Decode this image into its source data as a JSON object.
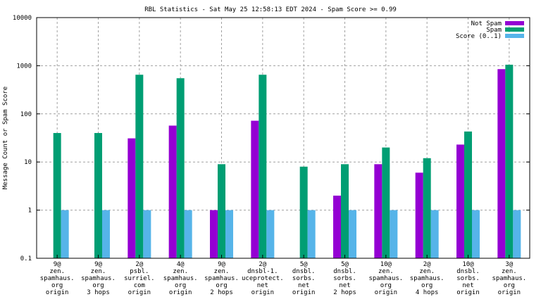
{
  "chart_data": {
    "type": "bar",
    "title": "RBL Statistics - Sat May 25 12:58:13 EDT 2024 - Spam Score >= 0.99",
    "xlabel": "",
    "ylabel": "Message Count or Spam Score",
    "yscale": "log",
    "ylim": [
      0.1,
      10000
    ],
    "yticks": [
      "0.1",
      "1",
      "10",
      "100",
      "1000",
      "10000"
    ],
    "grid": true,
    "legend_position": "top-right",
    "categories": [
      [
        "9@",
        "zen.",
        "spamhaus.",
        "org",
        "origin"
      ],
      [
        "9@",
        "zen.",
        "spamhaus.",
        "org",
        "3 hops"
      ],
      [
        "2@",
        "psbl.",
        "surriel.",
        "com",
        "origin"
      ],
      [
        "4@",
        "zen.",
        "spamhaus.",
        "org",
        "origin"
      ],
      [
        "9@",
        "zen.",
        "spamhaus.",
        "org",
        "2 hops"
      ],
      [
        "2@",
        "dnsbl-1.",
        "uceprotect.",
        "net",
        "origin"
      ],
      [
        "5@",
        "dnsbl.",
        "sorbs.",
        "net",
        "origin"
      ],
      [
        "5@",
        "dnsbl.",
        "sorbs.",
        "net",
        "2 hops"
      ],
      [
        "10@",
        "zen.",
        "spamhaus.",
        "org",
        "origin"
      ],
      [
        "2@",
        "zen.",
        "spamhaus.",
        "org",
        "4 hops"
      ],
      [
        "10@",
        "dnsbl.",
        "sorbs.",
        "net",
        "origin"
      ],
      [
        "3@",
        "zen.",
        "spamhaus.",
        "org",
        "origin"
      ]
    ],
    "series": [
      {
        "name": "Not Spam",
        "color": "#9400d3",
        "values": [
          0,
          0,
          31,
          57,
          1,
          72,
          0,
          2,
          9,
          6,
          23,
          850
        ]
      },
      {
        "name": "Spam",
        "color": "#009e73",
        "values": [
          40,
          40,
          650,
          550,
          9,
          650,
          8,
          9,
          20,
          12,
          43,
          1050
        ]
      },
      {
        "name": "Score (0..1)",
        "color": "#56b4e9",
        "values": [
          1,
          1,
          1,
          1,
          1,
          1,
          1,
          1,
          1,
          1,
          1,
          1
        ]
      }
    ]
  }
}
